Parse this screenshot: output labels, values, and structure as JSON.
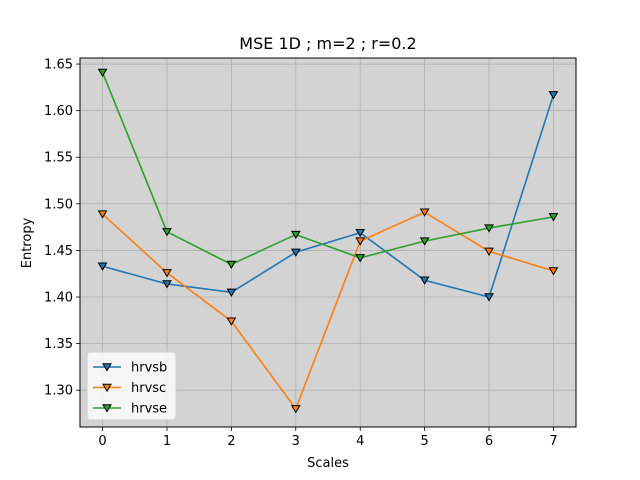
{
  "chart_data": {
    "type": "line",
    "title": "MSE 1D ; m=2 ; r=0.2",
    "xlabel": "Scales",
    "ylabel": "Entropy",
    "x": [
      0,
      1,
      2,
      3,
      4,
      5,
      6,
      7
    ],
    "xlim": [
      -0.35,
      7.35
    ],
    "ylim": [
      1.2605,
      1.6565
    ],
    "xticks": [
      "0",
      "1",
      "2",
      "3",
      "4",
      "5",
      "6",
      "7"
    ],
    "yticks": [
      "1.30",
      "1.35",
      "1.40",
      "1.45",
      "1.50",
      "1.55",
      "1.60",
      "1.65"
    ],
    "grid": true,
    "legend_position": "lower-left",
    "plot_background": "#d3d3d3",
    "marker": "down-triangle",
    "series": [
      {
        "name": "hrvsb",
        "color": "#1f77b4",
        "values": [
          1.433,
          1.414,
          1.405,
          1.448,
          1.469,
          1.418,
          1.4,
          1.617
        ]
      },
      {
        "name": "hrvsc",
        "color": "#ff7f0e",
        "values": [
          1.489,
          1.426,
          1.374,
          1.28,
          1.46,
          1.491,
          1.449,
          1.428
        ]
      },
      {
        "name": "hrvse",
        "color": "#2ca02c",
        "values": [
          1.641,
          1.47,
          1.435,
          1.467,
          1.442,
          1.46,
          1.474,
          1.486
        ]
      }
    ]
  }
}
